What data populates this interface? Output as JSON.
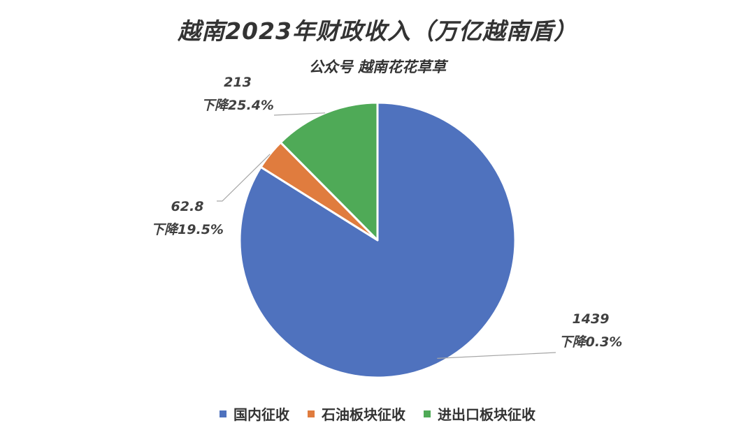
{
  "title": "越南2023年财政收入（万亿越南盾）",
  "subtitle": "公众号 越南花花草草",
  "colors": {
    "domestic": "#4F72BE",
    "oil": "#E07C3E",
    "import_export": "#4FAA57"
  },
  "chart_data": {
    "type": "pie",
    "slices": [
      {
        "label": "国内征收",
        "value": 1439,
        "value_text": "1439",
        "change_text": "下降0.3%"
      },
      {
        "label": "石油板块征收",
        "value": 62.8,
        "value_text": "62.8",
        "change_text": "下降19.5%"
      },
      {
        "label": "进出口板块征收",
        "value": 213,
        "value_text": "213",
        "change_text": "下降25.4%"
      }
    ],
    "legend_position": "bottom"
  }
}
